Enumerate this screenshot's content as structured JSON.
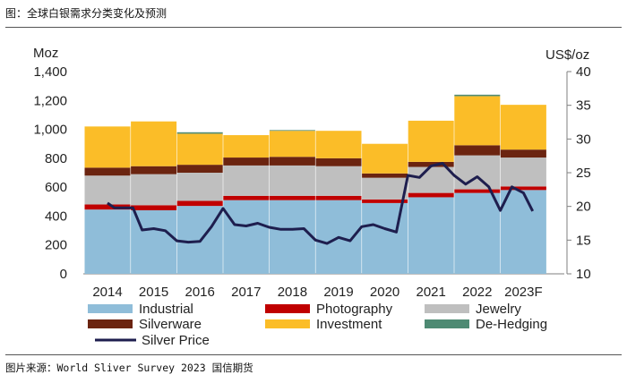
{
  "figure_title": "图：全球白银需求分类变化及预测",
  "source_note": "图片来源：World Sliver Survey 2023  国信期货",
  "chart_data": {
    "type": "bar",
    "stacked": true,
    "categories": [
      "2014",
      "2015",
      "2016",
      "2017",
      "2018",
      "2019",
      "2020",
      "2021",
      "2022",
      "2023F"
    ],
    "left_axis": {
      "unit": "Moz",
      "range": [
        0,
        1400
      ],
      "ticks": [
        "0",
        "200",
        "400",
        "600",
        "800",
        "1,000",
        "1,200",
        "1,400"
      ]
    },
    "right_axis": {
      "unit": "US$/oz",
      "range": [
        10,
        40
      ],
      "ticks": [
        "10",
        "15",
        "20",
        "25",
        "30",
        "35",
        "40"
      ]
    },
    "series": [
      {
        "name": "Industrial",
        "color": "#8fbdd9",
        "values": [
          445,
          440,
          470,
          510,
          510,
          510,
          490,
          530,
          560,
          580
        ]
      },
      {
        "name": "Photography",
        "color": "#c00000",
        "values": [
          35,
          35,
          35,
          30,
          30,
          30,
          25,
          30,
          25,
          25
        ]
      },
      {
        "name": "Jewelry",
        "color": "#bfbfbf",
        "values": [
          200,
          215,
          195,
          210,
          210,
          205,
          150,
          180,
          235,
          200
        ]
      },
      {
        "name": "Silverware",
        "color": "#6b2410",
        "values": [
          55,
          55,
          55,
          55,
          60,
          55,
          30,
          35,
          70,
          55
        ]
      },
      {
        "name": "Investment",
        "color": "#fbbd28",
        "values": [
          285,
          310,
          215,
          155,
          180,
          190,
          205,
          285,
          340,
          310
        ]
      },
      {
        "name": "De-Hedging",
        "color": "#4e8a73",
        "values": [
          0,
          0,
          10,
          0,
          5,
          0,
          0,
          0,
          10,
          0
        ]
      }
    ],
    "line_series": {
      "name": "Silver Price",
      "color": "#1e1e4e",
      "axis": "right",
      "x": [
        2014.0,
        2014.15,
        2014.35,
        2014.55,
        2014.75,
        2015.0,
        2015.25,
        2015.5,
        2015.75,
        2016.0,
        2016.25,
        2016.5,
        2016.75,
        2017.0,
        2017.25,
        2017.5,
        2017.75,
        2018.0,
        2018.25,
        2018.5,
        2018.75,
        2019.0,
        2019.25,
        2019.5,
        2019.75,
        2020.0,
        2020.25,
        2020.5,
        2020.75,
        2021.0,
        2021.25,
        2021.5,
        2021.75,
        2022.0,
        2022.25,
        2022.5,
        2022.75,
        2023.0,
        2023.2
      ],
      "y": [
        20.5,
        19.8,
        19.8,
        19.8,
        16.5,
        16.7,
        16.4,
        14.9,
        14.7,
        14.8,
        17.0,
        19.7,
        17.3,
        17.1,
        17.5,
        16.9,
        16.6,
        16.6,
        16.7,
        15.0,
        14.5,
        15.4,
        14.9,
        17.0,
        17.3,
        16.7,
        16.2,
        24.6,
        24.3,
        26.0,
        26.4,
        24.6,
        23.3,
        24.4,
        22.9,
        19.4,
        22.9,
        22.0,
        19.3
      ]
    }
  }
}
